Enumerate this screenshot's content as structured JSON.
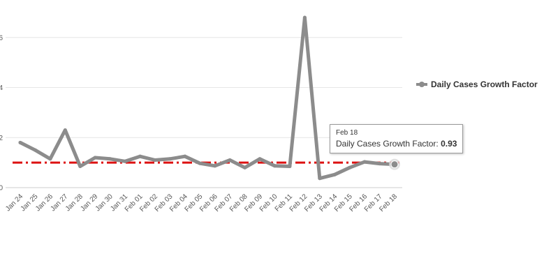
{
  "chart_data": {
    "type": "line",
    "x": [
      "Jan 24",
      "Jan 25",
      "Jan 26",
      "Jan 27",
      "Jan 28",
      "Jan 29",
      "Jan 30",
      "Jan 31",
      "Feb 01",
      "Feb 02",
      "Feb 03",
      "Feb 04",
      "Feb 05",
      "Feb 06",
      "Feb 07",
      "Feb 08",
      "Feb 09",
      "Feb 10",
      "Feb 11",
      "Feb 12",
      "Feb 13",
      "Feb 14",
      "Feb 15",
      "Feb 16",
      "Feb 17",
      "Feb 18"
    ],
    "series": [
      {
        "name": "Daily Cases Growth Factor",
        "color": "#8c8c8c",
        "values": [
          1.8,
          1.5,
          1.15,
          2.3,
          0.85,
          1.2,
          1.15,
          1.05,
          1.25,
          1.1,
          1.15,
          1.25,
          0.97,
          0.87,
          1.1,
          0.8,
          1.15,
          0.87,
          0.85,
          6.8,
          0.37,
          0.52,
          0.8,
          1.03,
          0.96,
          0.93
        ]
      }
    ],
    "reference_line": {
      "value": 1,
      "color": "#dd1111",
      "style": "dash-dot"
    },
    "y_ticks": [
      "0",
      "2",
      "4",
      "6"
    ],
    "ylim": [
      0,
      7.5
    ],
    "grid": true,
    "legend_position": "right",
    "title": "",
    "xlabel": "",
    "ylabel": ""
  },
  "legend": {
    "label": "Daily Cases Growth Factor"
  },
  "tooltip": {
    "date": "Feb 18",
    "label": "Daily Cases Growth Factor:",
    "value": "0.93"
  }
}
